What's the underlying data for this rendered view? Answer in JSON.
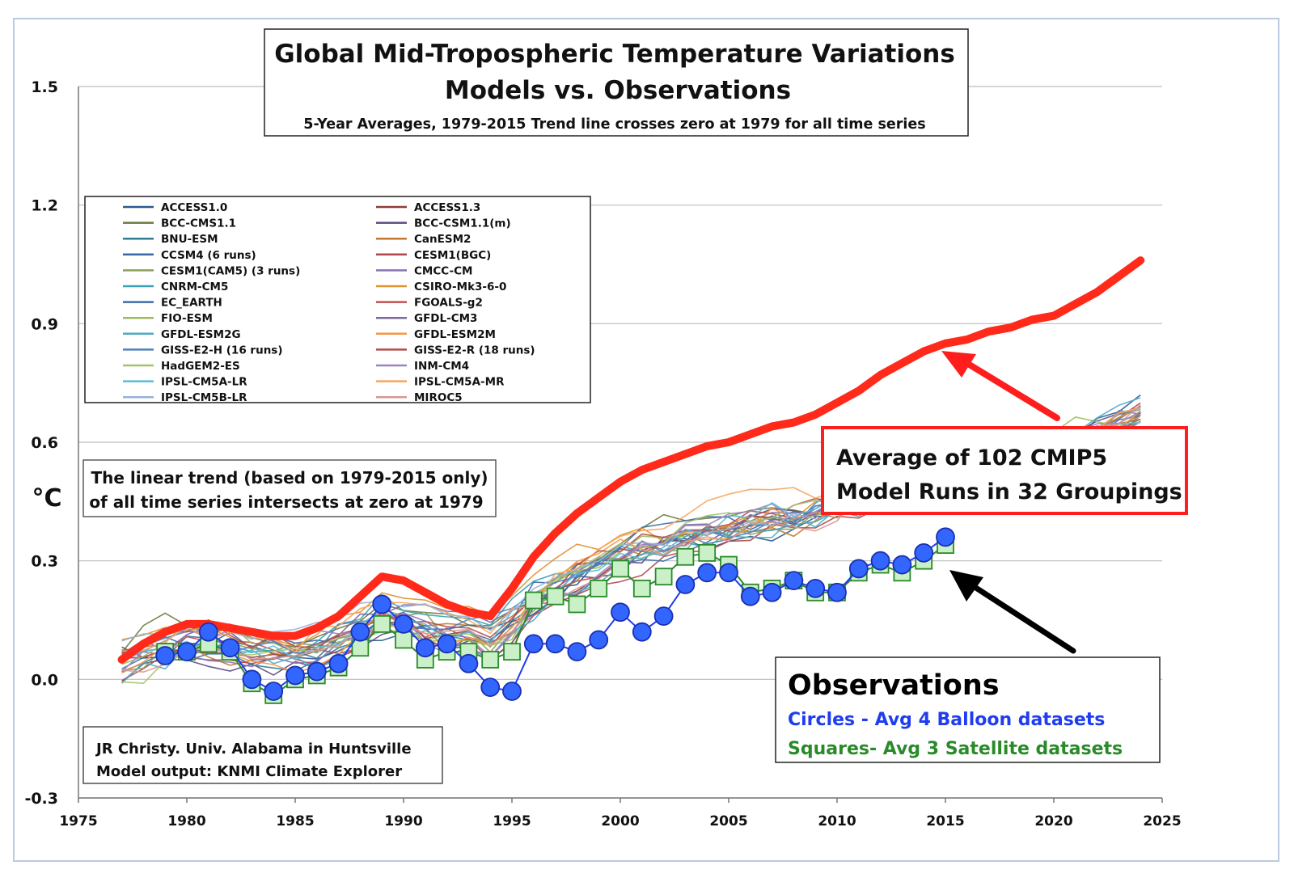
{
  "chart_data": {
    "type": "line",
    "title": "Global Mid-Tropospheric Temperature Variations",
    "title2": "Models vs. Observations",
    "subtitle": "5-Year Averages, 1979-2015 Trend line crosses zero at 1979 for all time series",
    "ylabel": "°C",
    "xlim": [
      1975,
      2025
    ],
    "ylim": [
      -0.3,
      1.5
    ],
    "x_ticks": [
      1975,
      1980,
      1985,
      1990,
      1995,
      2000,
      2005,
      2010,
      2015,
      2020,
      2025
    ],
    "y_ticks": [
      -0.3,
      0.0,
      0.3,
      0.6,
      0.9,
      1.2,
      1.5
    ],
    "y_tick_labels": [
      "-0.3",
      "0.0",
      "0.3",
      "0.6",
      "0.9",
      "1.2",
      "1.5"
    ],
    "grid": "horizontal",
    "legend_placement": "top-left",
    "legend": [
      {
        "name": "ACCESS1.0",
        "color": "#2b5b8f"
      },
      {
        "name": "ACCESS1.3",
        "color": "#8f3b3b"
      },
      {
        "name": "BCC-CMS1.1",
        "color": "#6b7a3a"
      },
      {
        "name": "BCC-CSM1.1(m)",
        "color": "#5a4a82"
      },
      {
        "name": "BNU-ESM",
        "color": "#2f7d94"
      },
      {
        "name": "CanESM2",
        "color": "#c4782e"
      },
      {
        "name": "CCSM4 (6 runs)",
        "color": "#3a6aa8"
      },
      {
        "name": "CESM1(BGC)",
        "color": "#b04848"
      },
      {
        "name": "CESM1(CAM5) (3 runs)",
        "color": "#8aa05a"
      },
      {
        "name": "CMCC-CM",
        "color": "#8a72b4"
      },
      {
        "name": "CNRM-CM5",
        "color": "#3aa0b8"
      },
      {
        "name": "CSIRO-Mk3-6-0",
        "color": "#e0922e"
      },
      {
        "name": "EC_EARTH",
        "color": "#3c6ea8"
      },
      {
        "name": "FGOALS-g2",
        "color": "#c0504d"
      },
      {
        "name": "FIO-ESM",
        "color": "#9bbb59"
      },
      {
        "name": "GFDL-CM3",
        "color": "#8064a2"
      },
      {
        "name": "GFDL-ESM2G",
        "color": "#4bacc6"
      },
      {
        "name": "GFDL-ESM2M",
        "color": "#f79646"
      },
      {
        "name": "GISS-E2-H (16 runs)",
        "color": "#4f81bd"
      },
      {
        "name": "GISS-E2-R (18 runs)",
        "color": "#b54a46"
      },
      {
        "name": "HadGEM2-ES",
        "color": "#a6c36b"
      },
      {
        "name": "INM-CM4",
        "color": "#9a85bf"
      },
      {
        "name": "IPSL-CM5A-LR",
        "color": "#5cbcd6"
      },
      {
        "name": "IPSL-CM5A-MR",
        "color": "#f8a55c"
      },
      {
        "name": "IPSL-CM5B-LR",
        "color": "#95b3d7"
      },
      {
        "name": "MIROC5",
        "color": "#d99694"
      }
    ],
    "model_average": {
      "name": "Average of 102 CMIP5 Model Runs in 32 Groupings",
      "color": "#ff2a1a",
      "x": [
        1977,
        1978,
        1979,
        1980,
        1981,
        1982,
        1983,
        1984,
        1985,
        1986,
        1987,
        1988,
        1989,
        1990,
        1991,
        1992,
        1993,
        1994,
        1995,
        1996,
        1997,
        1998,
        1999,
        2000,
        2001,
        2002,
        2003,
        2004,
        2005,
        2006,
        2007,
        2008,
        2009,
        2010,
        2011,
        2012,
        2013,
        2014,
        2015,
        2016,
        2017,
        2018,
        2019,
        2020,
        2021,
        2022,
        2023,
        2024
      ],
      "y": [
        0.05,
        0.09,
        0.12,
        0.14,
        0.14,
        0.13,
        0.12,
        0.11,
        0.11,
        0.13,
        0.16,
        0.21,
        0.26,
        0.25,
        0.22,
        0.19,
        0.17,
        0.16,
        0.23,
        0.31,
        0.37,
        0.42,
        0.46,
        0.5,
        0.53,
        0.55,
        0.57,
        0.59,
        0.6,
        0.62,
        0.64,
        0.65,
        0.67,
        0.7,
        0.73,
        0.77,
        0.8,
        0.83,
        0.85,
        0.86,
        0.88,
        0.89,
        0.91,
        0.92,
        0.95,
        0.98,
        1.02,
        1.06
      ]
    },
    "observations_title": "Observations",
    "balloon": {
      "name": "Circles - Avg 4 Balloon datasets",
      "color": "#1f3cf0",
      "x": [
        1979,
        1980,
        1981,
        1982,
        1983,
        1984,
        1985,
        1986,
        1987,
        1988,
        1989,
        1990,
        1991,
        1992,
        1993,
        1994,
        1995,
        1996,
        1997,
        1998,
        1999,
        2000,
        2001,
        2002,
        2003,
        2004,
        2005,
        2006,
        2007,
        2008,
        2009,
        2010,
        2011,
        2012,
        2013,
        2014,
        2015
      ],
      "y": [
        0.06,
        0.07,
        0.12,
        0.08,
        0.0,
        -0.03,
        0.01,
        0.02,
        0.04,
        0.12,
        0.19,
        0.14,
        0.08,
        0.09,
        0.04,
        -0.02,
        -0.03,
        0.09,
        0.09,
        0.07,
        0.1,
        0.17,
        0.12,
        0.16,
        0.24,
        0.27,
        0.27,
        0.21,
        0.22,
        0.25,
        0.23,
        0.22,
        0.28,
        0.3,
        0.29,
        0.32,
        0.36
      ]
    },
    "satellite": {
      "name": "Squares- Avg 3 Satellite datasets",
      "color": "#2a8a2a",
      "fill": "#c9f0c6",
      "x": [
        1979,
        1980,
        1981,
        1982,
        1983,
        1984,
        1985,
        1986,
        1987,
        1988,
        1989,
        1990,
        1991,
        1992,
        1993,
        1994,
        1995,
        1996,
        1997,
        1998,
        1999,
        2000,
        2001,
        2002,
        2003,
        2004,
        2005,
        2006,
        2007,
        2008,
        2009,
        2010,
        2011,
        2012,
        2013,
        2014,
        2015
      ],
      "y": [
        0.07,
        0.07,
        0.09,
        0.07,
        -0.01,
        -0.04,
        0.0,
        0.01,
        0.03,
        0.08,
        0.14,
        0.1,
        0.05,
        0.07,
        0.07,
        0.05,
        0.07,
        0.2,
        0.21,
        0.19,
        0.23,
        0.28,
        0.23,
        0.26,
        0.31,
        0.32,
        0.29,
        0.22,
        0.23,
        0.25,
        0.22,
        0.22,
        0.27,
        0.29,
        0.27,
        0.3,
        0.34
      ]
    },
    "annotations": {
      "trend_note": [
        "The linear trend (based on 1979-2015 only)",
        "of all time series intersects at zero at 1979"
      ],
      "average_label": [
        "Average of 102 CMIP5",
        "Model Runs in 32 Groupings"
      ],
      "credit": [
        "JR Christy. Univ. Alabama in Huntsville",
        "Model output: KNMI Climate Explorer"
      ]
    }
  }
}
